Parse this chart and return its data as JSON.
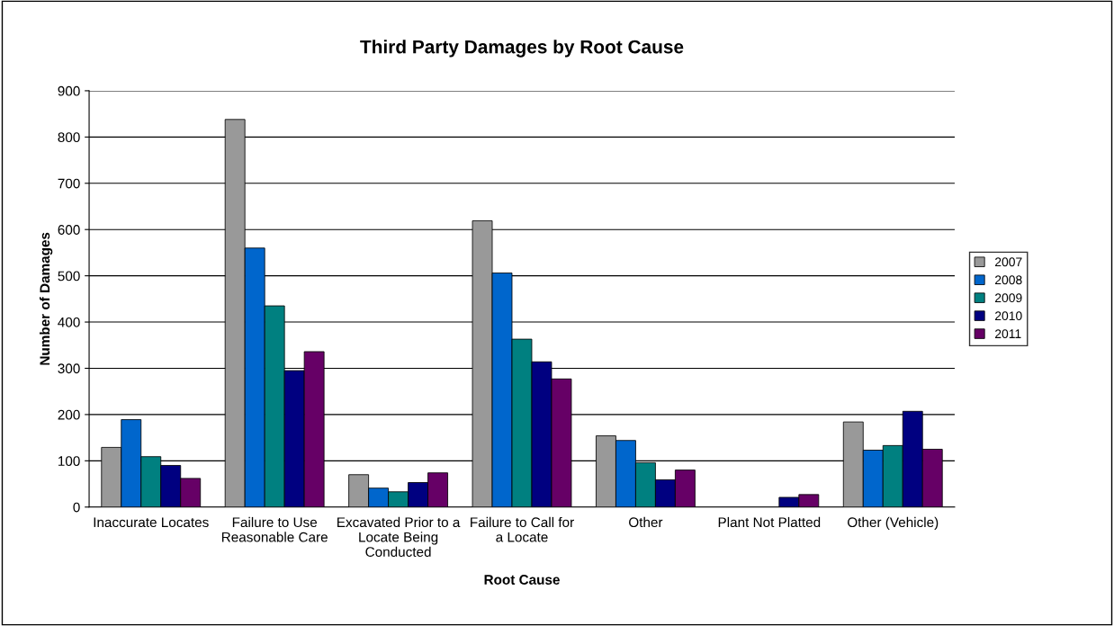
{
  "chart_data": {
    "type": "bar",
    "title": "Third Party Damages by Root Cause",
    "xlabel": "Root Cause",
    "ylabel": "Number of Damages",
    "categories": [
      "Inaccurate Locates",
      "Failure to Use Reasonable Care",
      "Excavated Prior to a Locate Being Conducted",
      "Failure to Call for a Locate",
      "Other",
      "Plant Not Platted",
      "Other (Vehicle)"
    ],
    "series": [
      {
        "name": "2007",
        "color": "#999999",
        "values": [
          129,
          838,
          70,
          619,
          154,
          null,
          184
        ]
      },
      {
        "name": "2008",
        "color": "#0066cc",
        "values": [
          189,
          560,
          41,
          506,
          144,
          null,
          123
        ]
      },
      {
        "name": "2009",
        "color": "#008080",
        "values": [
          109,
          435,
          33,
          363,
          96,
          null,
          133
        ]
      },
      {
        "name": "2010",
        "color": "#000080",
        "values": [
          90,
          295,
          53,
          314,
          59,
          21,
          207
        ]
      },
      {
        "name": "2011",
        "color": "#660066",
        "values": [
          62,
          336,
          74,
          277,
          80,
          27,
          125
        ]
      }
    ],
    "ylim": [
      0,
      900
    ],
    "yticks": [
      0,
      100,
      200,
      300,
      400,
      500,
      600,
      700,
      800,
      900
    ],
    "grid": "y",
    "legend": "right"
  }
}
